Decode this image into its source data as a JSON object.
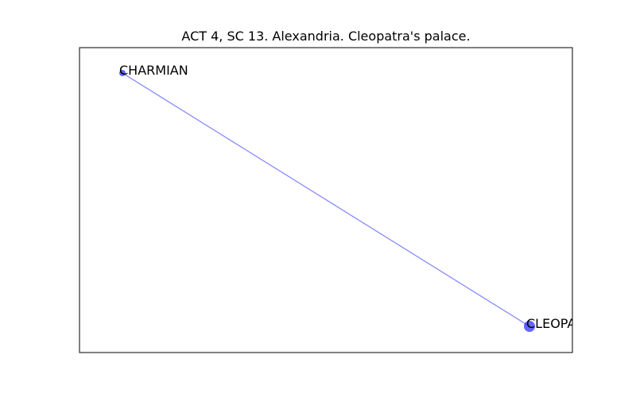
{
  "title": "ACT 4, SC 13. Alexandria. Cleopatra's palace.",
  "colors": {
    "edge": "#0000ff",
    "node": "#0000ff",
    "frame": "#000000"
  },
  "graph": {
    "nodes": [
      {
        "id": "CHARMIAN",
        "label": "CHARMIAN",
        "size": "small"
      },
      {
        "id": "CLEOPATRA",
        "label": "CLEOPATRA",
        "size": "large"
      }
    ],
    "edges": [
      {
        "source": "CHARMIAN",
        "target": "CLEOPATRA"
      }
    ]
  }
}
